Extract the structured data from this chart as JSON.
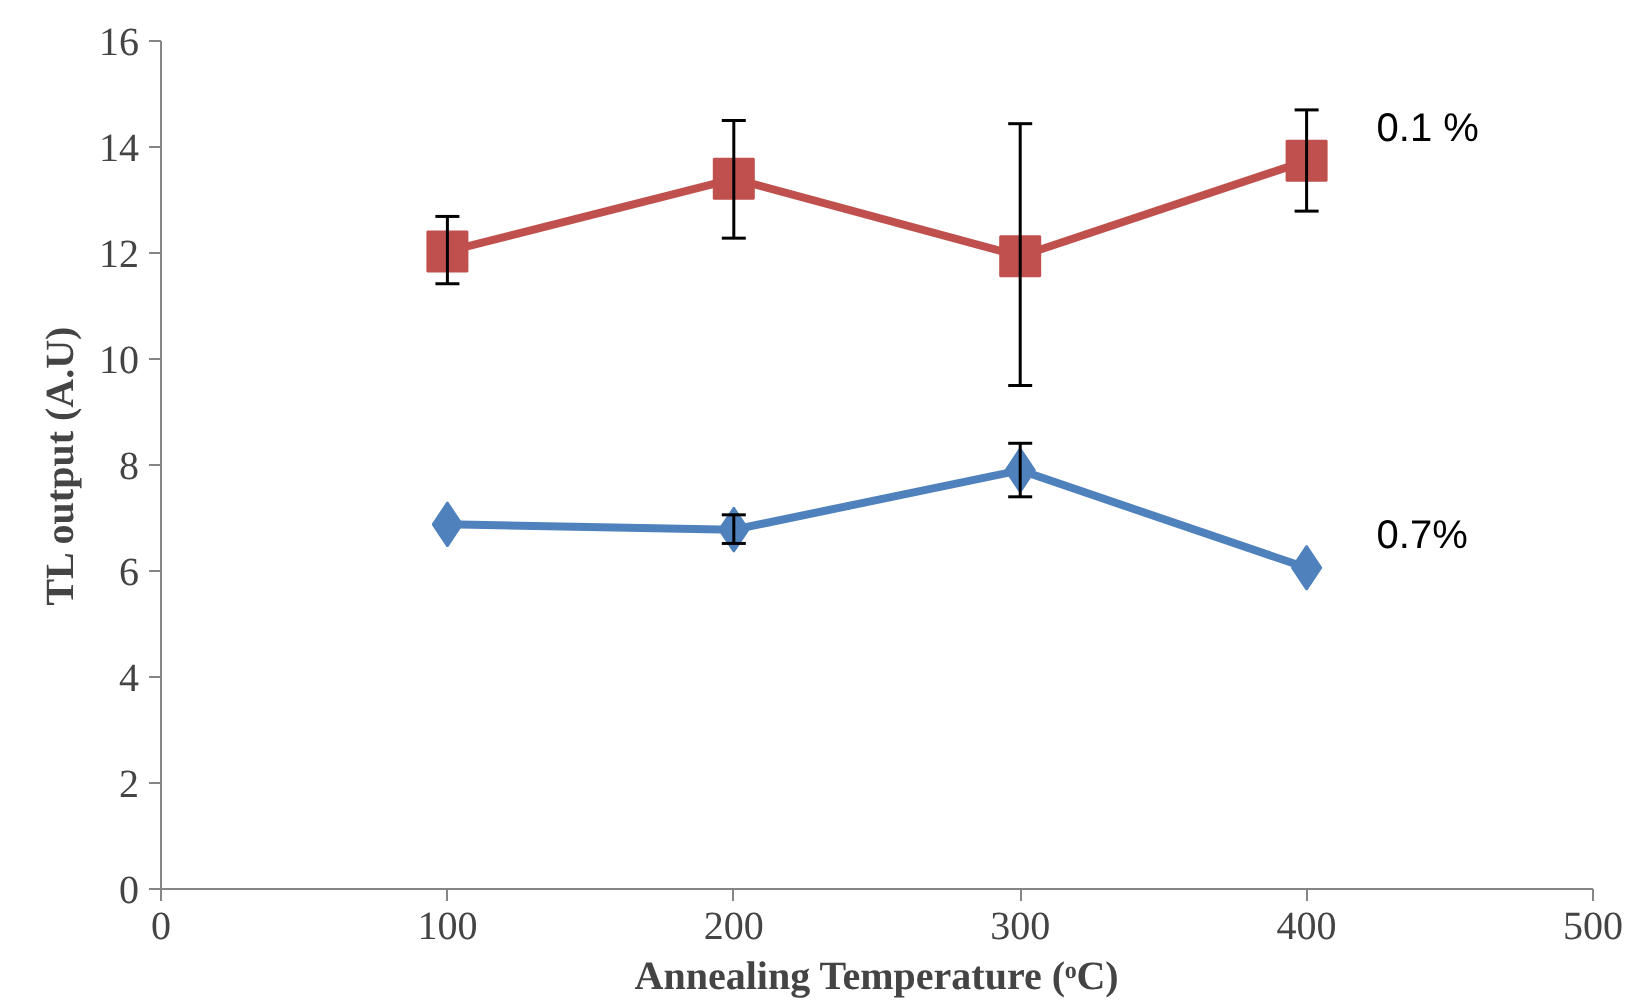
{
  "chart_data": {
    "type": "line",
    "xlabel": "Annealing Temperature (ᵒC)",
    "ylabel": "TL output (A.U)",
    "x": [
      100,
      200,
      300,
      400
    ],
    "series": [
      {
        "name": "0.1 %",
        "color": "#c0504d",
        "marker": "square",
        "values": [
          12.03,
          13.4,
          11.94,
          13.74
        ],
        "errors": [
          [
            11.42,
            12.69
          ],
          [
            12.28,
            14.5
          ],
          [
            9.5,
            14.44
          ],
          [
            12.79,
            14.7
          ]
        ]
      },
      {
        "name": "0.7%",
        "color": "#4f81bd",
        "marker": "diamond",
        "values": [
          6.88,
          6.78,
          7.9,
          6.06
        ],
        "errors": [
          null,
          [
            6.52,
            7.06
          ],
          [
            7.4,
            8.41
          ],
          null
        ]
      }
    ],
    "xlim": [
      0,
      500
    ],
    "xticks": [
      0,
      100,
      200,
      300,
      400,
      500
    ],
    "ylim": [
      0,
      16
    ],
    "yticks": [
      0,
      2,
      4,
      6,
      8,
      10,
      12,
      14,
      16
    ],
    "grid": false,
    "legend": false
  }
}
